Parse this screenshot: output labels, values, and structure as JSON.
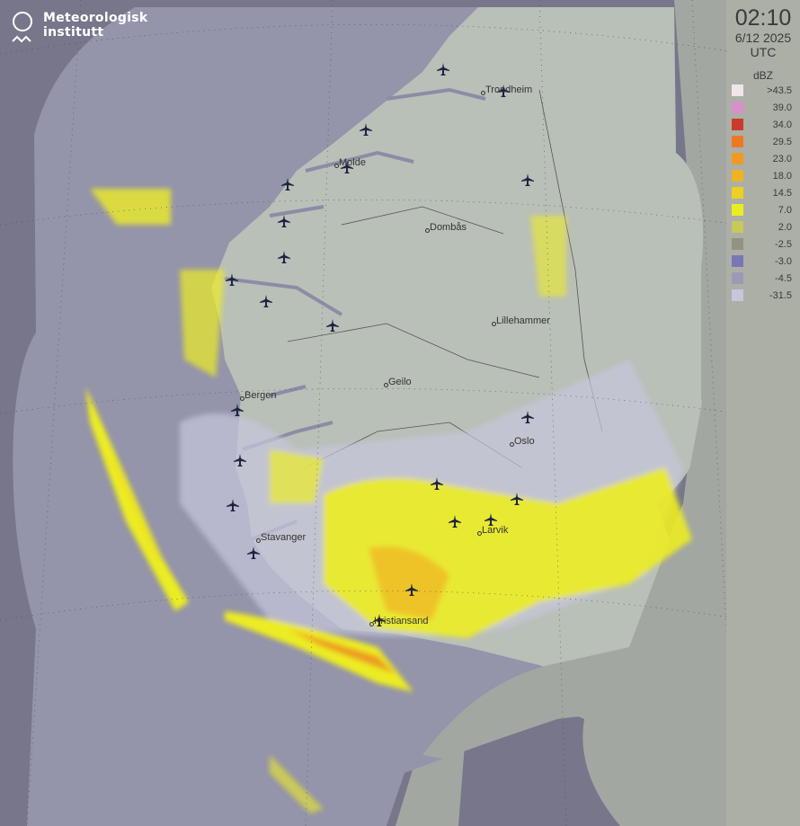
{
  "brand": {
    "name_line1": "Meteorologisk",
    "name_line2": "institutt",
    "icon": "met-logo-icon"
  },
  "timestamp": {
    "time": "02:10",
    "date": "6/12 2025",
    "zone": "UTC"
  },
  "legend": {
    "unit": "dBZ",
    "items": [
      {
        "label": ">43.5",
        "color": "#efe6e8"
      },
      {
        "label": "39.0",
        "color": "#d88fcc"
      },
      {
        "label": "34.0",
        "color": "#cc3a2a"
      },
      {
        "label": "29.5",
        "color": "#ec7a24"
      },
      {
        "label": "23.0",
        "color": "#ef9a24"
      },
      {
        "label": "18.0",
        "color": "#efb224"
      },
      {
        "label": "14.5",
        "color": "#ecd024"
      },
      {
        "label": "7.0",
        "color": "#ecec24"
      },
      {
        "label": "2.0",
        "color": "#c9c958"
      },
      {
        "label": "-2.5",
        "color": "#939380"
      },
      {
        "label": "-3.0",
        "color": "#7878b6"
      },
      {
        "label": "-4.5",
        "color": "#9a9ab6"
      },
      {
        "label": "-31.5",
        "color": "#c6c6dc"
      }
    ]
  },
  "cities": [
    "Trondheim",
    "Molde",
    "Dombås",
    "Lillehammer",
    "Geilo",
    "Bergen",
    "Oslo",
    "Stavanger",
    "Larvik",
    "Kristiansand"
  ],
  "colors": {
    "background": "#77768a",
    "radar_coverage": "#9494ab",
    "land": "#b9c0b8",
    "land_outside": "#a2a7a2",
    "airport": "#1e2440"
  },
  "airport_icon": "airplane-icon"
}
